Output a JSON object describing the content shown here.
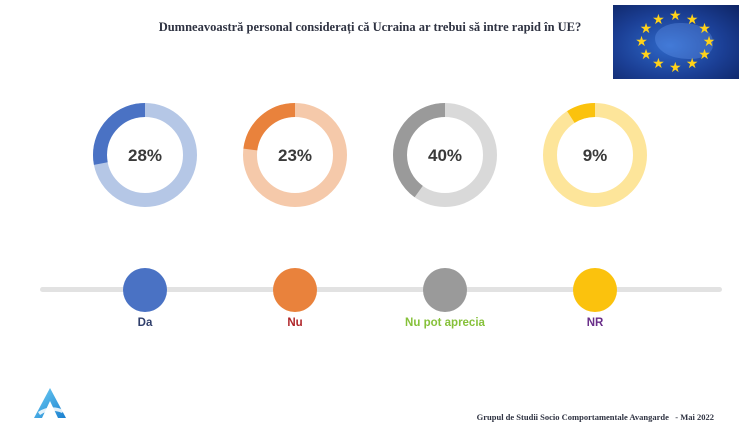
{
  "question": "Dumneavoastră personal considerați că Ucraina ar trebui să intre rapid în UE?",
  "chart_data": {
    "type": "pie",
    "title": "Dumneavoastră personal considerați că Ucraina ar trebui să intre rapid în UE?",
    "categories": [
      "Da",
      "Nu",
      "Nu pot aprecia",
      "NR"
    ],
    "values": [
      28,
      23,
      40,
      9
    ],
    "value_labels": [
      "28%",
      "23%",
      "40%",
      "9%"
    ],
    "unit": "%",
    "colors": [
      "#4a72c4",
      "#e9823c",
      "#9a9a9a",
      "#fbc20d"
    ],
    "track_colors": [
      "#b5c7e6",
      "#f5c9aa",
      "#d9d9d9",
      "#fde59a"
    ],
    "label_colors": [
      "#2f3e6b",
      "#b0262a",
      "#86c13a",
      "#6a2f8a"
    ]
  },
  "footer": "Grupul de Studii Socio Comportamentale Avangarde   - Mai 2022",
  "icons": {
    "flag": "eu-flag-icon",
    "logo": "avangarde-logo-icon"
  }
}
